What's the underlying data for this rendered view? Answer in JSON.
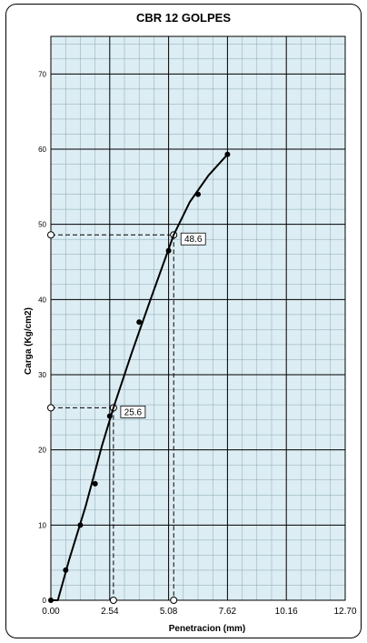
{
  "chart_data": {
    "type": "scatter",
    "title": "CBR 12 GOLPES",
    "xlabel": "Penetracion (mm)",
    "ylabel": "Carga (Kg/cm2)",
    "xlim": [
      0,
      12.7
    ],
    "ylim": [
      0,
      75
    ],
    "x_ticks": [
      "0.00",
      "2.54",
      "5.08",
      "7.62",
      "10.16",
      "12.70"
    ],
    "y_ticks": [
      "0",
      "10",
      "20",
      "30",
      "40",
      "50",
      "60",
      "70"
    ],
    "grid": true,
    "colors": {
      "plot_bg": "#dcedf3",
      "line": "#000000"
    },
    "points": [
      {
        "x": 0.0,
        "y": 0.0
      },
      {
        "x": 0.64,
        "y": 4.0
      },
      {
        "x": 1.27,
        "y": 10.0
      },
      {
        "x": 1.91,
        "y": 15.5
      },
      {
        "x": 2.54,
        "y": 24.5
      },
      {
        "x": 3.81,
        "y": 37.0
      },
      {
        "x": 5.08,
        "y": 46.5
      },
      {
        "x": 6.35,
        "y": 54.0
      },
      {
        "x": 7.62,
        "y": 59.3
      }
    ],
    "curve": [
      {
        "x": 0.0,
        "y": 0.0
      },
      {
        "x": 0.3,
        "y": 0.0
      },
      {
        "x": 0.8,
        "y": 5.5
      },
      {
        "x": 1.5,
        "y": 12.5
      },
      {
        "x": 2.2,
        "y": 20.5
      },
      {
        "x": 2.7,
        "y": 25.6
      },
      {
        "x": 3.5,
        "y": 33.0
      },
      {
        "x": 4.3,
        "y": 40.0
      },
      {
        "x": 5.3,
        "y": 48.6
      },
      {
        "x": 6.0,
        "y": 53.0
      },
      {
        "x": 6.8,
        "y": 56.5
      },
      {
        "x": 7.62,
        "y": 59.3
      }
    ],
    "annotations": [
      {
        "label": "25.6",
        "x": 2.7,
        "y": 25.6
      },
      {
        "label": "48.6",
        "x": 5.3,
        "y": 48.6
      }
    ]
  }
}
